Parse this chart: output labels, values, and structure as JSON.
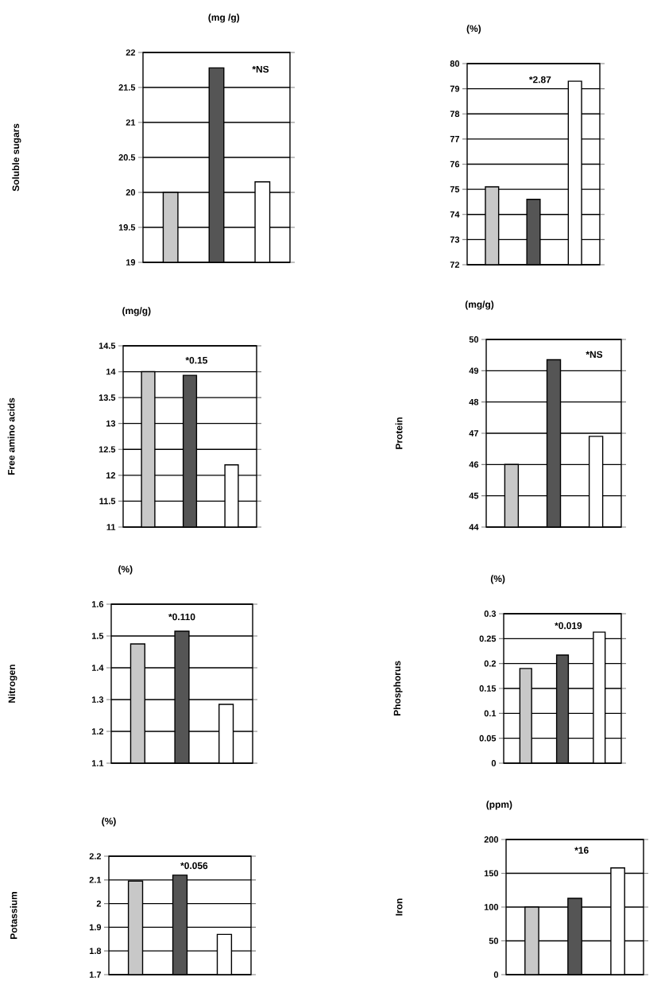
{
  "chart_data": [
    {
      "type": "bar",
      "title": "(mg /g)",
      "ylabel": "Soluble sugars",
      "categories": [
        null,
        null,
        null
      ],
      "values": [
        20.0,
        21.78,
        20.15
      ],
      "colors": [
        "#c8c8c8",
        "#555555",
        "#ffffff"
      ],
      "ylim": [
        19,
        22
      ],
      "yticks": [
        19,
        19.5,
        20,
        20.5,
        21,
        21.5,
        22
      ],
      "grid": "y",
      "annotations": [
        "*NS"
      ]
    },
    {
      "type": "bar",
      "title": "(%)",
      "categories": [
        null,
        null,
        null
      ],
      "values": [
        75.1,
        74.6,
        79.3
      ],
      "colors": [
        "#c8c8c8",
        "#555555",
        "#ffffff"
      ],
      "ylim": [
        72,
        80
      ],
      "yticks": [
        72,
        73,
        74,
        75,
        76,
        77,
        78,
        79,
        80
      ],
      "grid": "y",
      "annotations": [
        "*2.87"
      ]
    },
    {
      "type": "bar",
      "title": "(mg/g)",
      "ylabel": "Free amino acids",
      "categories": [
        null,
        null,
        null
      ],
      "values": [
        14.0,
        13.93,
        12.2
      ],
      "colors": [
        "#c8c8c8",
        "#555555",
        "#ffffff"
      ],
      "ylim": [
        11,
        14.5
      ],
      "yticks": [
        11,
        11.5,
        12,
        12.5,
        13,
        13.5,
        14,
        14.5
      ],
      "grid": "y",
      "annotations": [
        "*0.15"
      ]
    },
    {
      "type": "bar",
      "title": "(mg/g)",
      "ylabel": "Protein",
      "categories": [
        null,
        null,
        null
      ],
      "values": [
        46.0,
        49.35,
        46.9
      ],
      "colors": [
        "#c8c8c8",
        "#555555",
        "#ffffff"
      ],
      "ylim": [
        44,
        50
      ],
      "yticks": [
        44,
        45,
        46,
        47,
        48,
        49,
        50
      ],
      "grid": "y",
      "annotations": [
        "*NS"
      ]
    },
    {
      "type": "bar",
      "title": "(%)",
      "ylabel": "Nitrogen",
      "categories": [
        null,
        null,
        null
      ],
      "values": [
        1.475,
        1.515,
        1.285
      ],
      "colors": [
        "#c8c8c8",
        "#555555",
        "#ffffff"
      ],
      "ylim": [
        1.1,
        1.6
      ],
      "yticks": [
        1.1,
        1.2,
        1.3,
        1.4,
        1.5,
        1.6
      ],
      "grid": "y",
      "annotations": [
        "*0.110"
      ]
    },
    {
      "type": "bar",
      "title": "(%)",
      "ylabel": "Phosphorus",
      "categories": [
        null,
        null,
        null
      ],
      "values": [
        0.19,
        0.217,
        0.263
      ],
      "colors": [
        "#c8c8c8",
        "#555555",
        "#ffffff"
      ],
      "ylim": [
        0,
        0.3
      ],
      "yticks": [
        0,
        0.05,
        0.1,
        0.15,
        0.2,
        0.25,
        0.3
      ],
      "grid": "y",
      "annotations": [
        "*0.019"
      ]
    },
    {
      "type": "bar",
      "title": "(%)",
      "ylabel": "Potassium",
      "categories": [
        null,
        null,
        null
      ],
      "values": [
        2.095,
        2.12,
        1.87
      ],
      "colors": [
        "#c8c8c8",
        "#555555",
        "#ffffff"
      ],
      "ylim": [
        1.7,
        2.2
      ],
      "yticks": [
        1.7,
        1.8,
        1.9,
        2,
        2.1,
        2.2
      ],
      "grid": "y",
      "annotations": [
        "*0.056"
      ]
    },
    {
      "type": "bar",
      "title": "(ppm)",
      "ylabel": "Iron",
      "categories": [
        null,
        null,
        null
      ],
      "values": [
        100,
        113,
        158
      ],
      "colors": [
        "#c8c8c8",
        "#555555",
        "#ffffff"
      ],
      "ylim": [
        0,
        200
      ],
      "yticks": [
        0,
        50,
        100,
        150,
        200
      ],
      "grid": "y",
      "annotations": [
        "*16"
      ]
    }
  ]
}
